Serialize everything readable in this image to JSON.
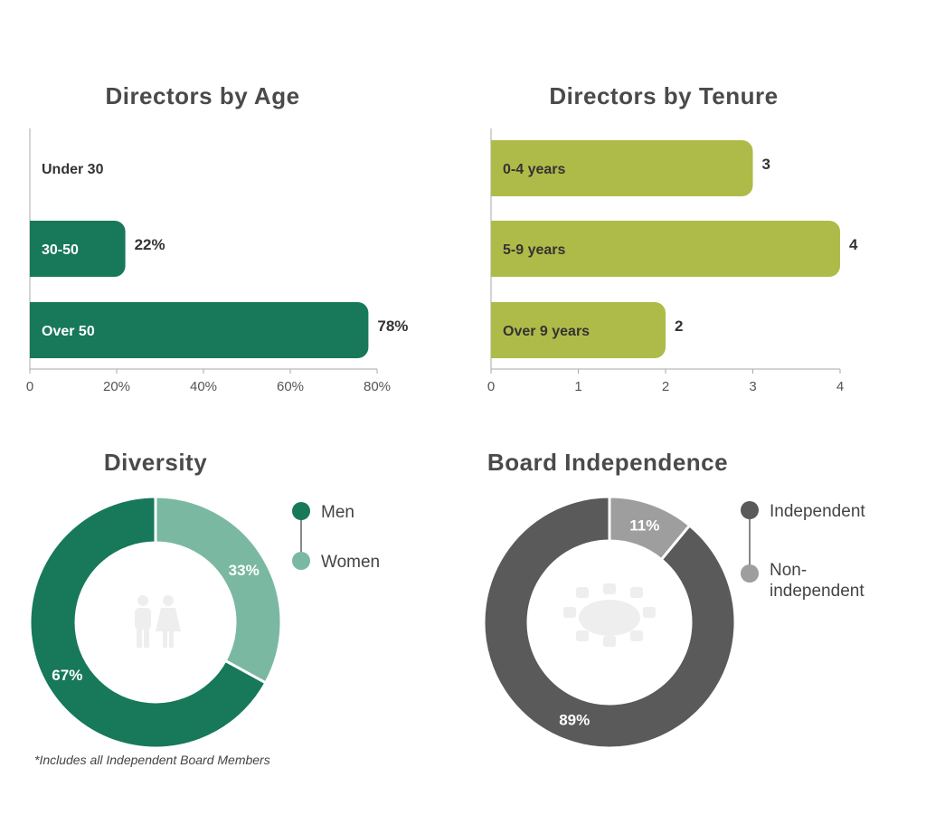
{
  "colors": {
    "green": "#17785a",
    "light_green": "#7ab8a2",
    "olive": "#afbb48",
    "dark_gray": "#5a5a5a",
    "mid_gray": "#9e9e9e",
    "axis": "#aaaaaa",
    "silhouette": "#eeeeee"
  },
  "footnote": "*Includes all Independent Board Members",
  "chart_data": [
    {
      "type": "bar",
      "orientation": "horizontal",
      "title": "Directors by Age",
      "categories": [
        "Under 30",
        "30-50",
        "Over 50"
      ],
      "values": [
        0,
        22,
        78
      ],
      "value_labels": [
        "",
        "22%",
        "78%"
      ],
      "xlim": [
        0,
        80
      ],
      "xticks": [
        0,
        20,
        40,
        60,
        80
      ],
      "xtick_labels": [
        "0",
        "20%",
        "40%",
        "60%",
        "80%"
      ],
      "color": "#17785a"
    },
    {
      "type": "bar",
      "orientation": "horizontal",
      "title": "Directors by Tenure",
      "categories": [
        "0-4 years",
        "5-9 years",
        "Over 9 years"
      ],
      "values": [
        3,
        4,
        2
      ],
      "value_labels": [
        "3",
        "4",
        "2"
      ],
      "xlim": [
        0,
        4
      ],
      "xticks": [
        0,
        1,
        2,
        3,
        4
      ],
      "xtick_labels": [
        "0",
        "1",
        "2",
        "3",
        "4"
      ],
      "color": "#afbb48"
    },
    {
      "type": "pie",
      "variant": "donut",
      "title": "Diversity",
      "labels": [
        "Men",
        "Women"
      ],
      "values": [
        67,
        33
      ],
      "value_labels": [
        "67%",
        "33%"
      ],
      "colors": [
        "#17785a",
        "#7ab8a2"
      ],
      "legend": [
        "Men",
        "Women"
      ],
      "center_icon": "people-icon"
    },
    {
      "type": "pie",
      "variant": "donut",
      "title": "Board Independence",
      "labels": [
        "Independent",
        "Non-independent"
      ],
      "values": [
        89,
        11
      ],
      "value_labels": [
        "89%",
        "11%"
      ],
      "colors": [
        "#5a5a5a",
        "#9e9e9e"
      ],
      "legend": [
        "Independent",
        "Non-\nindependent"
      ],
      "center_icon": "boardroom-table-icon"
    }
  ]
}
